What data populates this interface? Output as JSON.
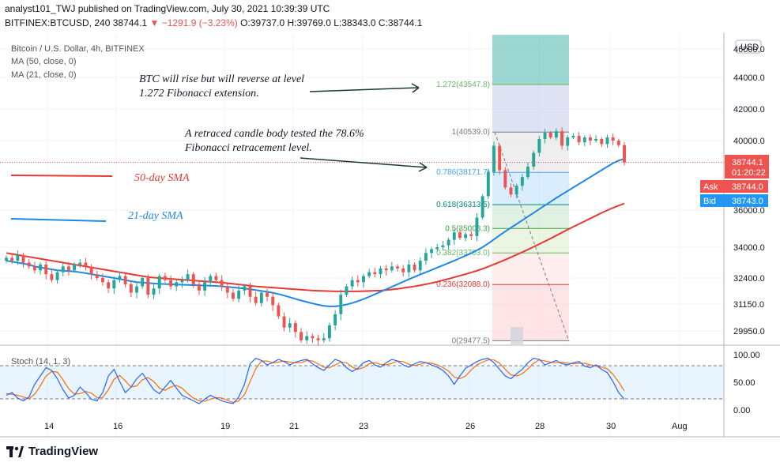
{
  "header": {
    "line1": "analyst101_TWJ published on TradingView.com, July 30, 2021 10:39:39 UTC",
    "symbol": "BITFINEX:BTCUSD, 240",
    "last": "38744.1",
    "change": "−1291.9 (−3.23%)",
    "ohlc": "O:39737.0 H:39769.0 L:38343.0 C:38744.1"
  },
  "legend": {
    "title": "Bitcoin / U.S. Dollar, 4h, BITFINEX",
    "ma50": "MA (50, close, 0)",
    "ma21": "MA (21, close, 0)",
    "stoch": "Stoch (14, 1, 3)",
    "sma50_label": "50-day SMA",
    "sma21_label": "21-day SMA"
  },
  "annotations": {
    "a1_line1": "BTC will rise but will reverse at level",
    "a1_line2": "1.272 Fibonacci extension.",
    "a2_line1": "A retraced candle body tested the 78.6%",
    "a2_line2": "Fibonacci retracement level."
  },
  "colors": {
    "up": "#26a69a",
    "down": "#ef5350",
    "ma50": "#e53935",
    "ma21": "#1e88e5",
    "stoch_k": "#2962ff",
    "stoch_d": "#ff6d00"
  },
  "price_axis": {
    "currency": "USD",
    "ticks": [
      "44000.0",
      "42000.0",
      "40000.0",
      "36000.0",
      "34000.0",
      "32400.0",
      "31150.0",
      "29950.0"
    ],
    "top_tick": "46000.0",
    "last_price": "38744.1",
    "countdown": "01:20:22",
    "ask_label": "Ask",
    "ask": "38744.0",
    "bid_label": "Bid",
    "bid": "38743.0"
  },
  "stoch_axis": {
    "ticks": [
      "100.00",
      "50.00",
      "0.00"
    ]
  },
  "x_axis": {
    "ticks": [
      "14",
      "16",
      "19",
      "21",
      "23",
      "26",
      "28",
      "30",
      "Aug"
    ]
  },
  "footer": {
    "brand": "TradingView"
  },
  "chart_data": {
    "type": "candlestick",
    "title": "Bitcoin / U.S. Dollar, 4h, BITFINEX",
    "fibonacci": [
      {
        "level": "1.272",
        "label": "1.272(43547.8)",
        "price": 43547.8,
        "color": "#66bb6a"
      },
      {
        "level": "1",
        "label": "1(40539.0)",
        "price": 40539.0,
        "color": "#787b86"
      },
      {
        "level": "0.786",
        "label": "0.786(38171.7)",
        "price": 38171.7,
        "color": "#42a5f5"
      },
      {
        "level": "0.618",
        "label": "0.618(36313.5)",
        "price": 36313.5,
        "color": "#00897b"
      },
      {
        "level": "0.5",
        "label": "0.5(35008.3)",
        "price": 35008.3,
        "color": "#43a047"
      },
      {
        "level": "0.382",
        "label": "0.382(33703.0)",
        "price": 33703.0,
        "color": "#66bb6a"
      },
      {
        "level": "0.236",
        "label": "0.236(32088.0)",
        "price": 32088.0,
        "color": "#e53935"
      },
      {
        "level": "0",
        "label": "0(29477.5)",
        "price": 29477.5,
        "color": "#787b86"
      }
    ],
    "closes": [
      33450,
      33300,
      33600,
      33200,
      33000,
      32800,
      33100,
      32600,
      32300,
      32700,
      33000,
      32800,
      33100,
      33200,
      33000,
      32600,
      32400,
      32200,
      31900,
      32300,
      32500,
      32100,
      31700,
      32000,
      32400,
      31600,
      31900,
      32500,
      32300,
      32000,
      32200,
      32300,
      32600,
      32100,
      31800,
      32200,
      32500,
      32300,
      32000,
      31700,
      31400,
      31800,
      32000,
      31500,
      31200,
      31700,
      31500,
      31100,
      30600,
      30100,
      30300,
      29900,
      29500,
      29700,
      29600,
      29500,
      29600,
      30200,
      30700,
      31600,
      32000,
      32300,
      32200,
      32500,
      32700,
      32600,
      32900,
      32800,
      33000,
      32900,
      32700,
      33100,
      32800,
      33300,
      33700,
      33900,
      34000,
      34100,
      34400,
      34800,
      34500,
      34700,
      34600,
      35600,
      36800,
      38200,
      39700,
      38300,
      37300,
      36900,
      37400,
      37900,
      38500,
      39300,
      40100,
      40500,
      40200,
      40600,
      39700,
      40200,
      40300,
      39900,
      40200,
      40000,
      40100,
      39800,
      40200,
      40000,
      39737,
      38744
    ],
    "series": [
      {
        "name": "MA (50, close, 0)",
        "values": [
          33700,
          33650,
          33600,
          33550,
          33500,
          33450,
          33400,
          33350,
          33300,
          33250,
          33200,
          33150,
          33100,
          33050,
          33000,
          32950,
          32900,
          32850,
          32800,
          32750,
          32700,
          32650,
          32600,
          32550,
          32500,
          32450,
          32420,
          32400,
          32380,
          32360,
          32340,
          32320,
          32300,
          32280,
          32260,
          32240,
          32220,
          32200,
          32180,
          32150,
          32120,
          32090,
          32060,
          32030,
          32000,
          31980,
          31960,
          31940,
          31920,
          31900,
          31880,
          31860,
          31840,
          31820,
          31800,
          31790,
          31780,
          31770,
          31760,
          31760,
          31760,
          31760,
          31760,
          31770,
          31780,
          31790,
          31800,
          31820,
          31850,
          31880,
          31920,
          31960,
          32000,
          32050,
          32100,
          32160,
          32220,
          32290,
          32360,
          32440,
          32520,
          32600,
          32690,
          32780,
          32880,
          32990,
          33110,
          33230,
          33350,
          33480,
          33610,
          33740,
          33880,
          34020,
          34170,
          34320,
          34470,
          34630,
          34790,
          34950,
          35100,
          35250,
          35400,
          35550,
          35700,
          35850,
          35990,
          36130,
          36260,
          36380
        ]
      },
      {
        "name": "MA (21, close, 0)",
        "values": [
          33300,
          33250,
          33200,
          33150,
          33100,
          33000,
          32950,
          32900,
          32850,
          32800,
          32780,
          32760,
          32740,
          32700,
          32650,
          32600,
          32550,
          32500,
          32450,
          32400,
          32350,
          32300,
          32250,
          32200,
          32180,
          32160,
          32140,
          32120,
          32110,
          32100,
          32090,
          32080,
          32070,
          32060,
          32050,
          32040,
          32030,
          32020,
          32000,
          31980,
          31950,
          31920,
          31900,
          31860,
          31820,
          31780,
          31740,
          31690,
          31630,
          31560,
          31480,
          31400,
          31320,
          31250,
          31180,
          31120,
          31070,
          31050,
          31050,
          31080,
          31130,
          31200,
          31290,
          31390,
          31500,
          31620,
          31740,
          31860,
          31980,
          32100,
          32220,
          32340,
          32460,
          32580,
          32700,
          32820,
          32940,
          33060,
          33180,
          33300,
          33430,
          33560,
          33690,
          33840,
          34000,
          34200,
          34420,
          34640,
          34850,
          35050,
          35250,
          35450,
          35650,
          35850,
          36060,
          36270,
          36480,
          36700,
          36900,
          37100,
          37300,
          37500,
          37700,
          37900,
          38100,
          38300,
          38500,
          38700,
          38850,
          38950
        ]
      }
    ],
    "stochastic": {
      "k": [
        25,
        30,
        20,
        15,
        22,
        45,
        60,
        75,
        70,
        55,
        35,
        20,
        25,
        40,
        30,
        18,
        15,
        30,
        60,
        72,
        50,
        30,
        40,
        55,
        65,
        50,
        35,
        28,
        40,
        52,
        38,
        25,
        20,
        15,
        10,
        18,
        25,
        20,
        15,
        12,
        10,
        22,
        45,
        82,
        92,
        88,
        80,
        84,
        90,
        86,
        80,
        85,
        88,
        90,
        82,
        75,
        70,
        80,
        90,
        86,
        75,
        68,
        74,
        84,
        88,
        80,
        76,
        84,
        90,
        87,
        80,
        76,
        82,
        86,
        84,
        80,
        76,
        70,
        60,
        45,
        60,
        74,
        80,
        86,
        90,
        92,
        84,
        72,
        60,
        55,
        64,
        72,
        84,
        92,
        90,
        80,
        84,
        88,
        82,
        80,
        84,
        86,
        78,
        75,
        80,
        72,
        66,
        50,
        30,
        18
      ],
      "d": [
        28,
        27,
        25,
        22,
        19,
        27,
        42,
        60,
        68,
        67,
        53,
        37,
        27,
        28,
        32,
        29,
        21,
        21,
        35,
        54,
        61,
        51,
        40,
        42,
        53,
        57,
        50,
        38,
        34,
        40,
        43,
        38,
        28,
        20,
        15,
        14,
        18,
        21,
        20,
        16,
        12,
        15,
        26,
        50,
        73,
        87,
        87,
        84,
        85,
        87,
        85,
        84,
        84,
        88,
        87,
        82,
        76,
        75,
        80,
        85,
        84,
        76,
        72,
        75,
        82,
        84,
        81,
        80,
        83,
        87,
        86,
        81,
        79,
        81,
        84,
        83,
        80,
        75,
        69,
        58,
        55,
        60,
        71,
        80,
        85,
        89,
        89,
        83,
        72,
        62,
        60,
        64,
        73,
        83,
        89,
        87,
        85,
        84,
        85,
        83,
        82,
        83,
        83,
        80,
        78,
        76,
        73,
        63,
        49,
        33
      ],
      "levels": [
        80,
        20
      ],
      "ylim": [
        0,
        100
      ]
    },
    "ylim": [
      29000,
      46500
    ],
    "xticks": [
      "14",
      "16",
      "19",
      "21",
      "23",
      "26",
      "28",
      "30",
      "Aug"
    ]
  }
}
